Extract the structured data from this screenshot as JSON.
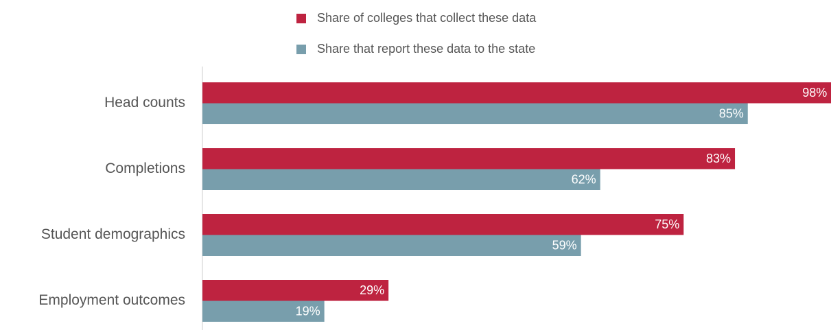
{
  "chart_data": {
    "type": "bar",
    "orientation": "horizontal",
    "categories": [
      "Head counts",
      "Completions",
      "Student demographics",
      "Employment outcomes"
    ],
    "series": [
      {
        "name": "Share of colleges that collect these data",
        "color": "#be2340",
        "values": [
          98,
          83,
          75,
          29
        ],
        "value_labels": [
          "98%",
          "83%",
          "75%",
          "29%"
        ]
      },
      {
        "name": "Share that report these data to the state",
        "color": "#789eac",
        "values": [
          85,
          62,
          59,
          19
        ],
        "value_labels": [
          "85%",
          "62%",
          "59%",
          "19%"
        ]
      }
    ],
    "xlim": [
      0,
      100
    ]
  }
}
